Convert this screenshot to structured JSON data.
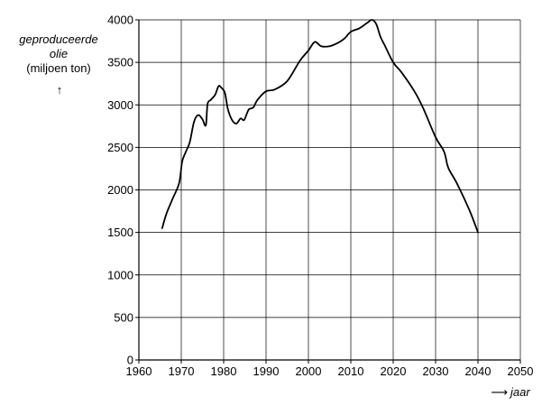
{
  "chart_data": {
    "type": "line",
    "title": "",
    "ylabel_lines": [
      "geproduceerde",
      "olie",
      "(miljoen ton)"
    ],
    "ylabel_arrow": "↑",
    "xlabel": "jaar",
    "xlabel_arrow": "⟶",
    "xlim": [
      1960,
      2050
    ],
    "ylim": [
      0,
      4000
    ],
    "xticks": [
      1960,
      1970,
      1980,
      1990,
      2000,
      2010,
      2020,
      2030,
      2040,
      2050
    ],
    "yticks": [
      0,
      500,
      1000,
      1500,
      2000,
      2500,
      3000,
      3500,
      4000
    ],
    "grid": true,
    "line_color": "#000000",
    "series": [
      {
        "x": [
          1965.5,
          1966.5,
          1968,
          1969.5,
          1970.2,
          1971,
          1972,
          1973,
          1974,
          1975,
          1975.8,
          1976.2,
          1977,
          1978,
          1978.8,
          1979.5,
          1980.3,
          1981,
          1982,
          1983,
          1984,
          1984.8,
          1985.5,
          1986,
          1987,
          1988,
          1990,
          1992,
          1995,
          1998,
          2000,
          2001.5,
          2003,
          2005,
          2007,
          2008.5,
          2010,
          2012,
          2014,
          2015,
          2016,
          2017,
          2018,
          2020,
          2022,
          2025,
          2027,
          2030,
          2032,
          2033,
          2035,
          2038,
          2040
        ],
        "y": [
          1550,
          1720,
          1900,
          2080,
          2330,
          2440,
          2560,
          2800,
          2880,
          2830,
          2760,
          3010,
          3060,
          3120,
          3220,
          3200,
          3140,
          2950,
          2820,
          2780,
          2840,
          2820,
          2900,
          2950,
          2970,
          3060,
          3160,
          3180,
          3280,
          3520,
          3640,
          3740,
          3690,
          3690,
          3730,
          3780,
          3860,
          3900,
          3970,
          4000,
          3950,
          3800,
          3700,
          3500,
          3380,
          3160,
          2970,
          2620,
          2450,
          2260,
          2080,
          1760,
          1500
        ]
      }
    ]
  }
}
